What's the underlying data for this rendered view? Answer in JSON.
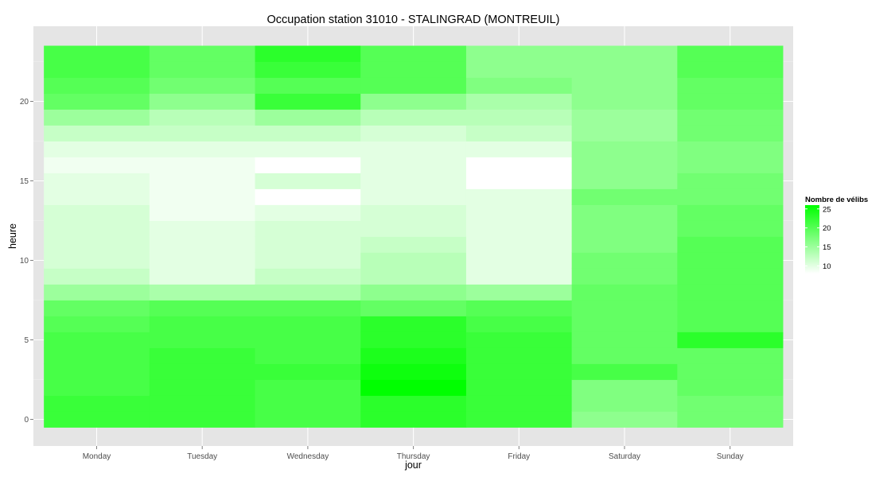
{
  "chart_data": {
    "type": "heatmap",
    "title": "Occupation station 31010 - STALINGRAD (MONTREUIL)",
    "xlabel": "jour",
    "ylabel": "heure",
    "x": [
      "Monday",
      "Tuesday",
      "Wednesday",
      "Thursday",
      "Friday",
      "Saturday",
      "Sunday"
    ],
    "y": [
      0,
      1,
      2,
      3,
      4,
      5,
      6,
      7,
      8,
      9,
      10,
      11,
      12,
      13,
      14,
      15,
      16,
      17,
      18,
      19,
      20,
      21,
      22,
      23
    ],
    "y_ticks": [
      0,
      5,
      10,
      15,
      20
    ],
    "ylim": [
      -0.5,
      23.5
    ],
    "grid": true,
    "legend": {
      "title": "Nombre de vélibs",
      "position": "right",
      "ticks": [
        10,
        15,
        20,
        25
      ],
      "range": [
        8,
        26
      ],
      "low_color": "#ffffff",
      "high_color": "#00ff00"
    },
    "values": [
      [
        22,
        22,
        21,
        21,
        21,
        21,
        20,
        19,
        15,
        12,
        11,
        11,
        11,
        11,
        10,
        10,
        9,
        10,
        12,
        15,
        19,
        20,
        21,
        21
      ],
      [
        22,
        22,
        22,
        22,
        22,
        21,
        21,
        20,
        14,
        10,
        10,
        10,
        10,
        9,
        9,
        9,
        9,
        10,
        12,
        13,
        16,
        18,
        19,
        19
      ],
      [
        21,
        21,
        21,
        22,
        21,
        21,
        21,
        20,
        14,
        12,
        11,
        11,
        11,
        10,
        8,
        11,
        8,
        10,
        12,
        15,
        22,
        20,
        22,
        23
      ],
      [
        23,
        23,
        26,
        25,
        24,
        23,
        23,
        19,
        16,
        13,
        13,
        12,
        11,
        11,
        10,
        10,
        10,
        10,
        11,
        13,
        16,
        20,
        20,
        20
      ],
      [
        22,
        22,
        22,
        22,
        22,
        22,
        21,
        20,
        15,
        10,
        10,
        10,
        10,
        10,
        10,
        8,
        8,
        10,
        12,
        13,
        14,
        17,
        16,
        16
      ],
      [
        16,
        17,
        17,
        21,
        19,
        19,
        19,
        19,
        19,
        18,
        18,
        17,
        17,
        17,
        18,
        16,
        16,
        16,
        15,
        15,
        16,
        16,
        16,
        16
      ],
      [
        18,
        18,
        19,
        19,
        19,
        23,
        20,
        20,
        20,
        20,
        20,
        20,
        19,
        19,
        18,
        18,
        17,
        17,
        18,
        18,
        19,
        19,
        20,
        20
      ]
    ]
  }
}
